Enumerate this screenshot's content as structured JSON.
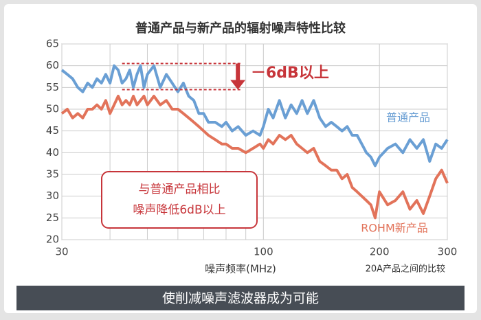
{
  "chart_data": {
    "type": "line",
    "title": "普通产品与新产品的辐射噪声特性比较",
    "x_label": "噪声频率(MHz)",
    "note": "20A产品之间的比较",
    "banner": "使削减噪声滤波器成为可能",
    "reduction_label": "－6dB以上",
    "callout": [
      "与普通产品相比",
      "噪声降低6dB以上"
    ],
    "x_log": true,
    "xlim": [
      30,
      300
    ],
    "xticks": [
      30,
      100,
      200,
      300
    ],
    "minor_xgrid": [
      40,
      50,
      60,
      70,
      80,
      90
    ],
    "ylim": [
      20,
      65
    ],
    "yticks": [
      20,
      25,
      30,
      35,
      40,
      45,
      50,
      55,
      60,
      65
    ],
    "grid": true,
    "reference_lines": {
      "y": [
        60.5,
        54.5
      ],
      "x_from": 43,
      "x_to": 88
    },
    "x": [
      30,
      31,
      32,
      33,
      34,
      35,
      36,
      37,
      38,
      39,
      40,
      41,
      42,
      43,
      44,
      45,
      46,
      47,
      48,
      49,
      50,
      52,
      54,
      56,
      58,
      60,
      62,
      64,
      66,
      68,
      70,
      72,
      75,
      78,
      80,
      83,
      86,
      90,
      94,
      98,
      100,
      103,
      106,
      110,
      114,
      118,
      122,
      126,
      130,
      135,
      140,
      145,
      150,
      155,
      160,
      165,
      170,
      175,
      180,
      185,
      190,
      195,
      200,
      210,
      220,
      230,
      240,
      250,
      260,
      270,
      280,
      290,
      300
    ],
    "series": [
      {
        "name": "普通产品",
        "color": "#6a9fd4",
        "values": [
          59,
          58,
          57,
          55,
          54,
          56,
          55,
          57,
          56,
          58,
          56,
          60,
          59,
          56,
          57,
          59,
          55,
          58,
          60,
          55,
          58,
          60,
          55,
          58,
          56,
          54,
          56,
          53,
          52,
          49,
          49,
          47,
          47,
          46,
          47,
          45,
          46,
          44,
          45,
          44,
          46,
          50,
          48,
          52,
          48,
          51,
          49,
          52,
          49,
          52,
          48,
          46,
          47,
          46,
          45,
          46,
          44,
          44,
          42,
          40,
          39,
          37,
          39,
          41,
          42,
          40,
          43,
          41,
          43,
          38,
          42,
          41,
          43
        ]
      },
      {
        "name": "ROHM新产品",
        "color": "#e2735a",
        "values": [
          49,
          50,
          48,
          49,
          48,
          50,
          50,
          51,
          50,
          52,
          49,
          51,
          53,
          51,
          52,
          51,
          53,
          51,
          52,
          53,
          51,
          53,
          51,
          52,
          50,
          50,
          49,
          48,
          47,
          46,
          45,
          44,
          43,
          42,
          42,
          41,
          41,
          40,
          41,
          42,
          41,
          43,
          42,
          44,
          43,
          44,
          42,
          41,
          40,
          41,
          38,
          37,
          36,
          36,
          34,
          35,
          32,
          31,
          30,
          29,
          28,
          25,
          31,
          28,
          29,
          31,
          27,
          29,
          26,
          30,
          34,
          36,
          33
        ]
      }
    ]
  }
}
